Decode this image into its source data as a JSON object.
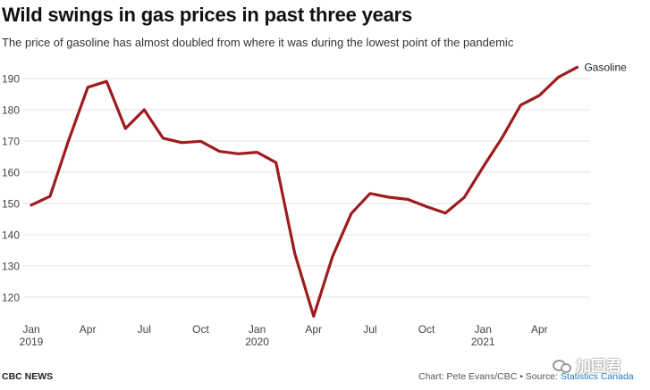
{
  "header": {
    "title": "Wild swings in gas prices in past three years",
    "subtitle": "The price of gasoline has almost doubled from where it was during the lowest point of the pandemic"
  },
  "footer": {
    "brand": "CBC NEWS",
    "credit": "Chart: Pete Evans/CBC • Source: ",
    "source": "Statistics Canada",
    "watermark": "加国君"
  },
  "colors": {
    "line": "#9e1b1e",
    "grid": "#e3e3e3",
    "tick_text": "#444444",
    "source_link": "#2a7ab8"
  },
  "chart_data": {
    "type": "line",
    "title": "Wild swings in gas prices in past three years",
    "xlabel": "",
    "ylabel": "",
    "ylim": [
      112,
      195
    ],
    "yticks": [
      120,
      130,
      140,
      150,
      160,
      170,
      180,
      190
    ],
    "grid": true,
    "x_ticks": [
      {
        "month_index": 0,
        "label": "Jan",
        "sublabel": "2019"
      },
      {
        "month_index": 3,
        "label": "Apr",
        "sublabel": ""
      },
      {
        "month_index": 6,
        "label": "Jul",
        "sublabel": ""
      },
      {
        "month_index": 9,
        "label": "Oct",
        "sublabel": ""
      },
      {
        "month_index": 12,
        "label": "Jan",
        "sublabel": "2020"
      },
      {
        "month_index": 15,
        "label": "Apr",
        "sublabel": ""
      },
      {
        "month_index": 18,
        "label": "Jul",
        "sublabel": ""
      },
      {
        "month_index": 21,
        "label": "Oct",
        "sublabel": ""
      },
      {
        "month_index": 24,
        "label": "Jan",
        "sublabel": "2021"
      },
      {
        "month_index": 27,
        "label": "Apr",
        "sublabel": ""
      }
    ],
    "series": [
      {
        "name": "Gasoline",
        "values": [
          149.5,
          152.3,
          170.5,
          187.2,
          189.1,
          174.0,
          180.0,
          170.9,
          169.5,
          169.9,
          166.7,
          165.9,
          166.4,
          163.1,
          134.0,
          113.9,
          132.9,
          146.8,
          153.2,
          152.0,
          151.3,
          149.0,
          146.9,
          151.9,
          161.6,
          170.9,
          181.5,
          184.6,
          190.4,
          193.6
        ]
      }
    ]
  }
}
